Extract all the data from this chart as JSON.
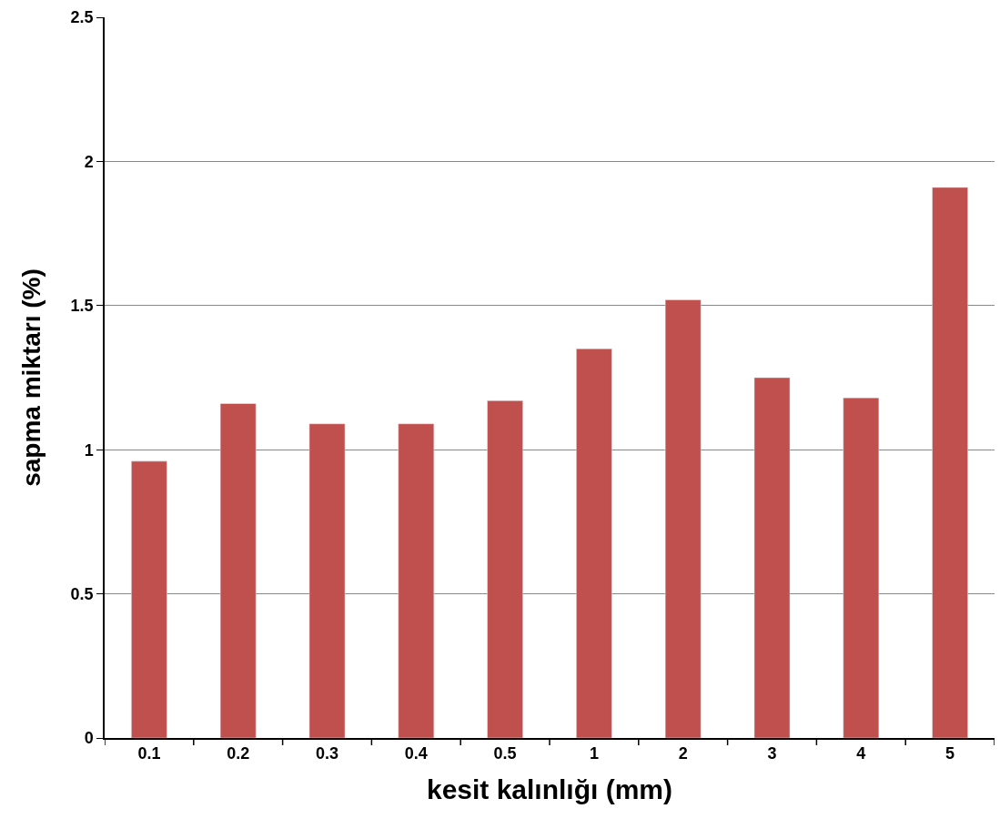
{
  "chart_data": {
    "type": "bar",
    "xlabel": "kesit kalınlığı (mm)",
    "ylabel": "sapma miktarı (%)",
    "categories": [
      "0.1",
      "0.2",
      "0.3",
      "0.4",
      "0.5",
      "1",
      "2",
      "3",
      "4",
      "5"
    ],
    "values": [
      0.96,
      1.16,
      1.09,
      1.09,
      1.17,
      1.35,
      1.52,
      1.25,
      1.18,
      1.91
    ],
    "color": "#c0504d",
    "ylim": [
      0,
      2.5
    ],
    "yticks": [
      0,
      0.5,
      1,
      1.5,
      2,
      2.5
    ],
    "grid": "y",
    "legend": false
  }
}
